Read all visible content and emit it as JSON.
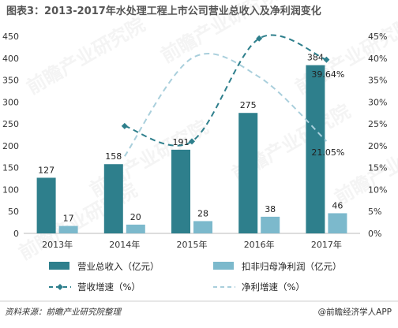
{
  "title": "图表3：2013-2017年水处理工程上市公司营业总收入及净利润变化",
  "watermark": "前瞻产业研究院",
  "footer": {
    "source": "资料来源：前瞻产业研究院整理",
    "brand": "@前瞻经济学人APP"
  },
  "colors": {
    "revenue": "#2e7f8c",
    "profit": "#7cb9cc",
    "revenue_growth": "#2e7f8c",
    "profit_growth": "#a9cfdc"
  },
  "chart_data": {
    "type": "bar",
    "categories": [
      "2013年",
      "2014年",
      "2015年",
      "2016年",
      "2017年"
    ],
    "series": [
      {
        "name": "营业总收入（亿元）",
        "type": "bar",
        "axis": "left",
        "values": [
          127,
          158,
          191,
          275,
          384
        ],
        "labels": [
          "127",
          "158",
          "191",
          "275",
          "384"
        ]
      },
      {
        "name": "扣非归母净利润（亿元）",
        "type": "bar",
        "axis": "left",
        "values": [
          17,
          20,
          28,
          38,
          46
        ],
        "labels": [
          "17",
          "20",
          "28",
          "38",
          "46"
        ]
      },
      {
        "name": "营收增速（%）",
        "type": "line",
        "style": "dashed-markers",
        "axis": "right",
        "values": [
          null,
          24.5,
          21.0,
          44.5,
          39.64
        ]
      },
      {
        "name": "净利增速（%）",
        "type": "line",
        "style": "dashed",
        "axis": "right",
        "values": [
          null,
          17.6,
          40.0,
          35.7,
          21.05
        ]
      }
    ],
    "annotations": [
      "39.64%",
      "21.05%"
    ],
    "y_left": {
      "min": 0,
      "max": 450,
      "ticks": [
        "0",
        "50",
        "100",
        "150",
        "200",
        "250",
        "300",
        "350",
        "400",
        "450"
      ]
    },
    "y_right": {
      "min": 0,
      "max": 45,
      "ticks": [
        "0%",
        "5%",
        "10%",
        "15%",
        "20%",
        "25%",
        "30%",
        "35%",
        "40%",
        "45%"
      ]
    },
    "grid": false,
    "legend_position": "bottom"
  }
}
